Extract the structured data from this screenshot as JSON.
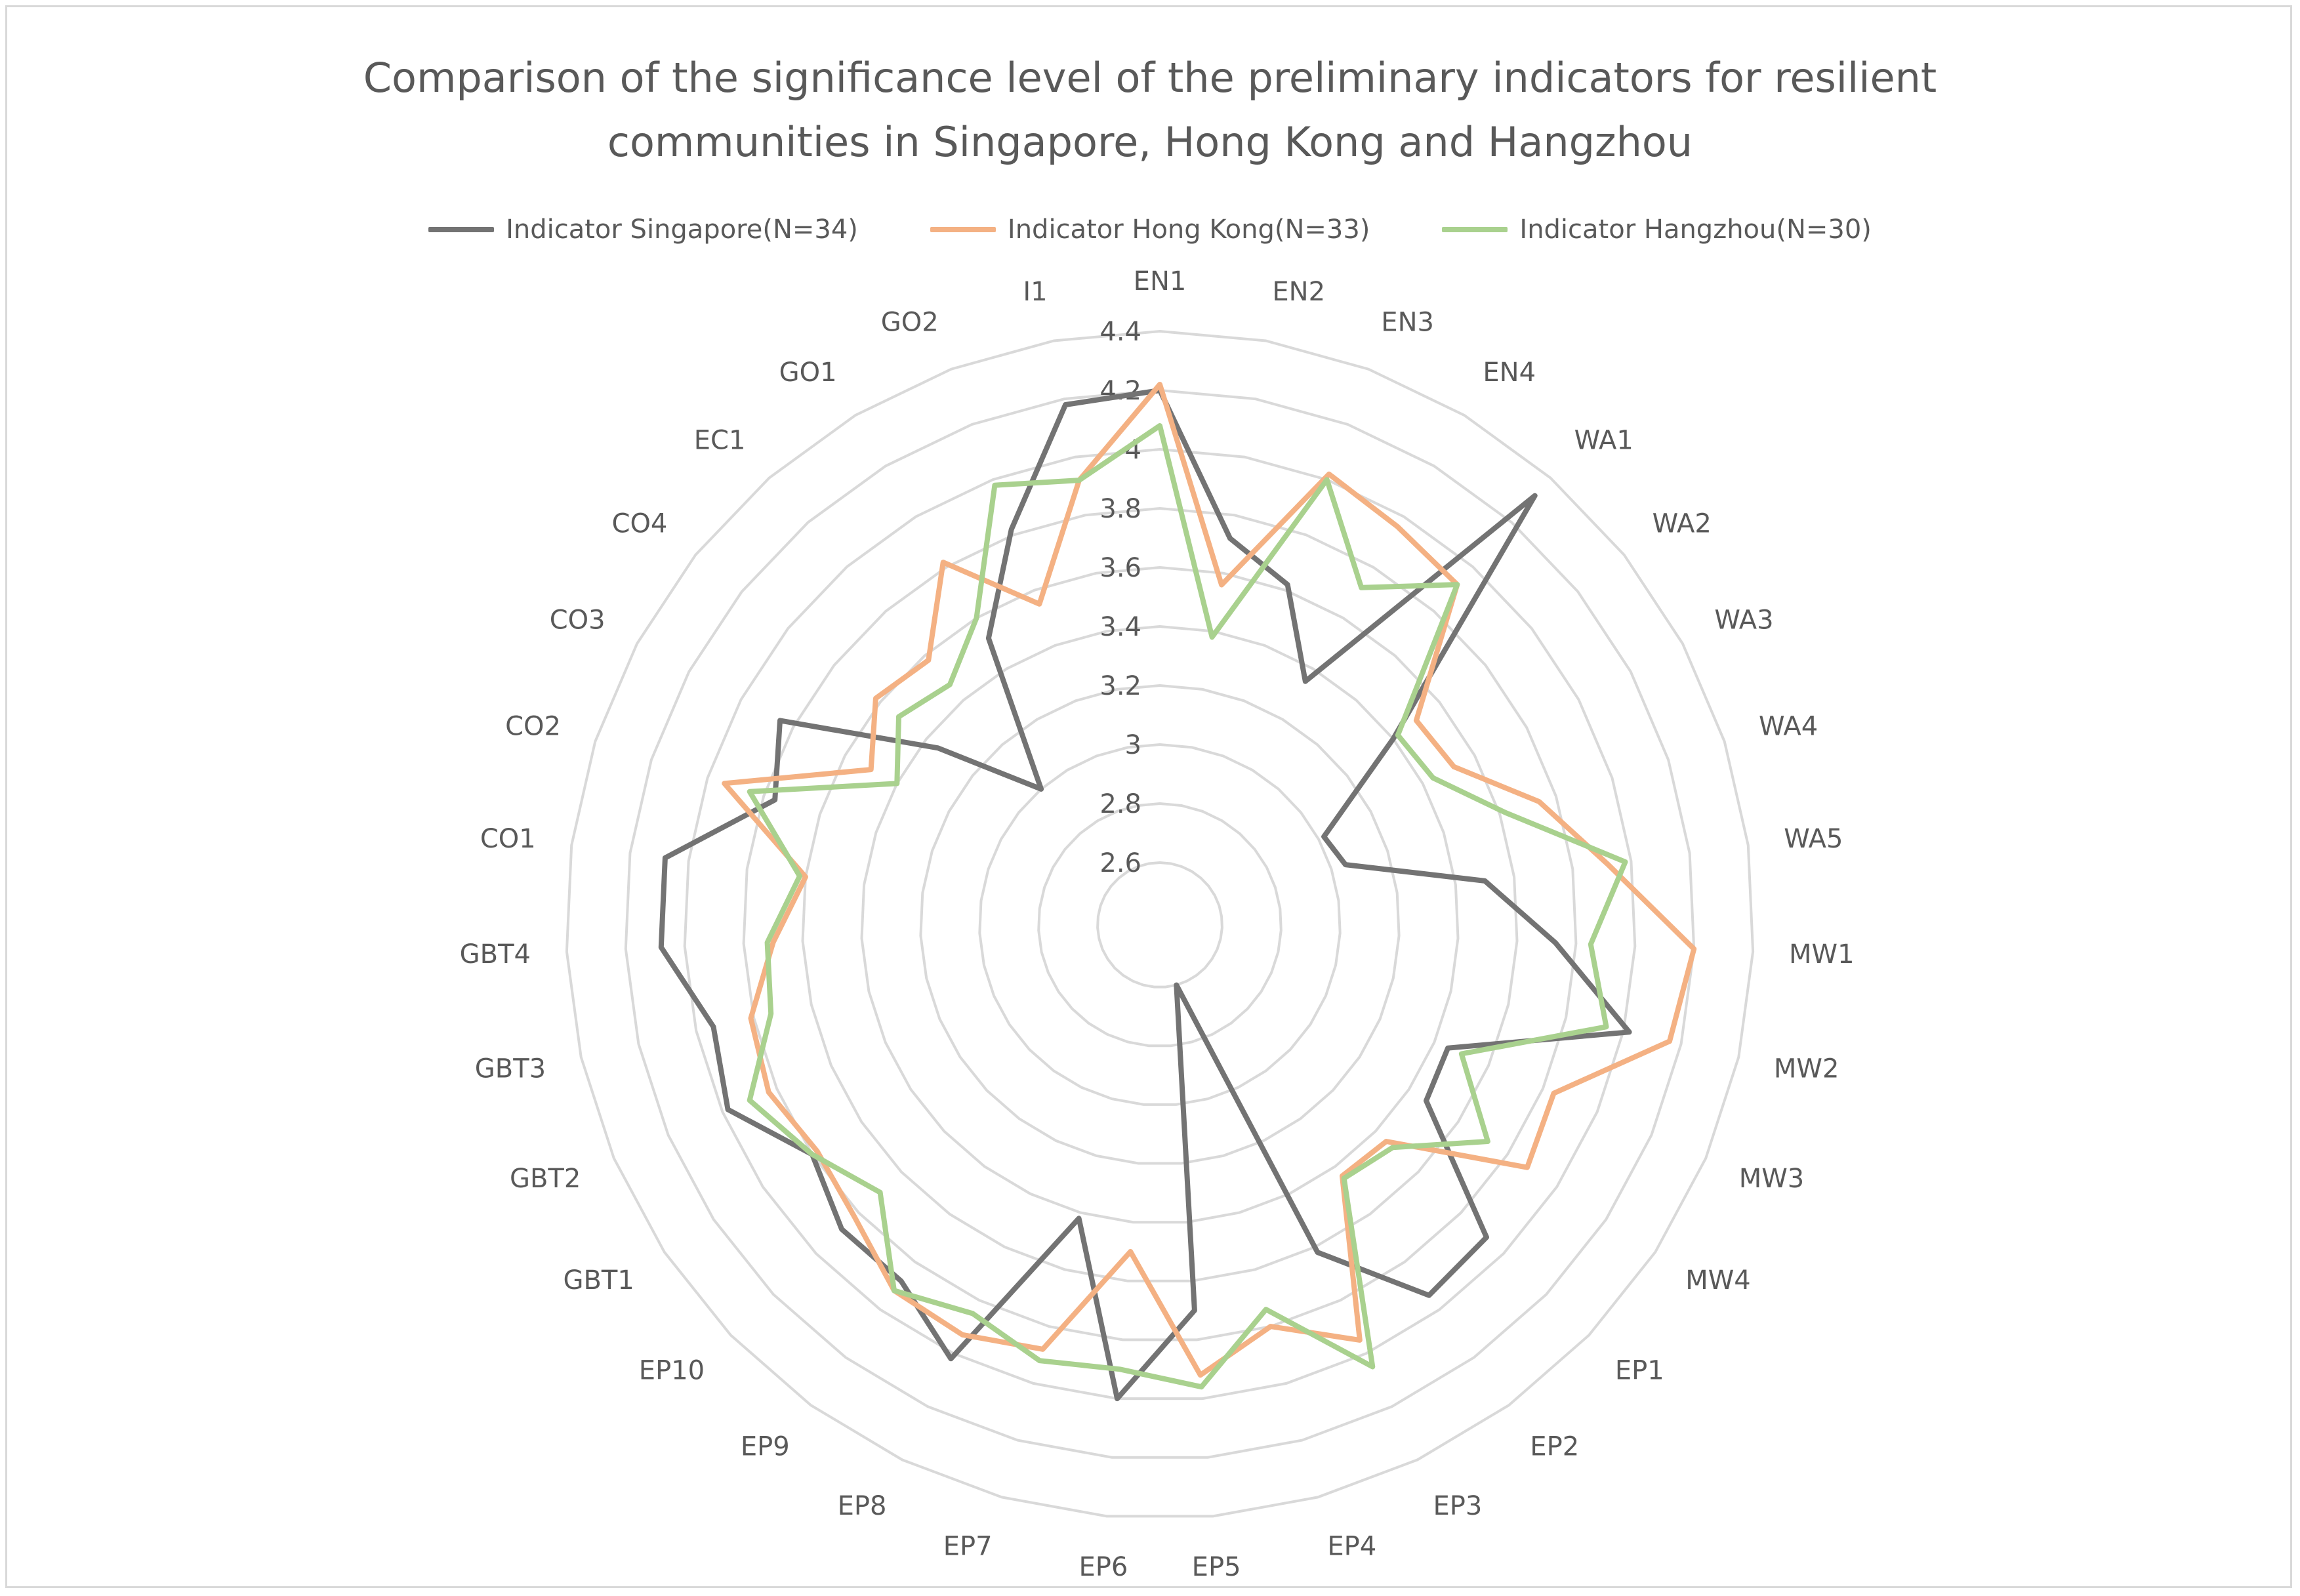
{
  "chart_data": {
    "type": "radar",
    "title_line1": "Comparison of the significance level of the preliminary indicators for resilient",
    "title_line2": "communities in Singapore, Hong Kong and Hangzhou",
    "categories": [
      "EN1",
      "EN2",
      "EN3",
      "EN4",
      "WA1",
      "WA2",
      "WA3",
      "WA4",
      "WA5",
      "MW1",
      "MW2",
      "MW3",
      "MW4",
      "EP1",
      "EP2",
      "EP3",
      "EP4",
      "EP5",
      "EP6",
      "EP7",
      "EP8",
      "EP9",
      "EP10",
      "GBT1",
      "GBT2",
      "GBT3",
      "GBT4",
      "CO1",
      "CO2",
      "CO3",
      "CO4",
      "EC1",
      "GO1",
      "GO2",
      "I1"
    ],
    "axis": {
      "min": 2.6,
      "max": 4.4,
      "step": 0.2,
      "tick_labels": [
        "2.6",
        "2.8",
        "3",
        "3.2",
        "3.4",
        "3.6",
        "3.8",
        "4",
        "4.2",
        "4.4"
      ]
    },
    "series": [
      {
        "name": "Indicator Singapore(N=34)",
        "color": "#737373",
        "values": [
          4.2,
          3.72,
          3.62,
          3.35,
          4.32,
          3.4,
          3.02,
          3.05,
          3.5,
          3.73,
          4.02,
          3.45,
          3.47,
          3.92,
          3.94,
          3.62,
          2.6,
          3.7,
          4.0,
          3.42,
          4.02,
          3.88,
          3.88,
          3.8,
          3.98,
          3.94,
          4.08,
          4.08,
          3.76,
          3.85,
          3.35,
          3.0,
          3.52,
          3.82,
          4.18
        ]
      },
      {
        "name": "Indicator Hong Kong(N=33)",
        "color": "#f4b183",
        "values": [
          4.22,
          3.56,
          4.02,
          3.96,
          3.92,
          3.5,
          3.52,
          3.74,
          3.92,
          4.2,
          4.16,
          3.84,
          3.88,
          3.45,
          3.44,
          3.95,
          3.8,
          3.92,
          3.5,
          3.88,
          3.93,
          3.92,
          3.82,
          3.78,
          3.83,
          3.81,
          3.7,
          3.6,
          3.94,
          3.5,
          3.62,
          3.58,
          3.82,
          3.55,
          3.92
        ]
      },
      {
        "name": "Indicator Hangzhou(N=30)",
        "color": "#a9d18e",
        "values": [
          4.08,
          3.38,
          4.0,
          3.72,
          3.92,
          3.42,
          3.44,
          3.62,
          3.98,
          3.85,
          3.94,
          3.5,
          3.72,
          3.48,
          3.45,
          4.05,
          3.74,
          3.96,
          3.9,
          3.92,
          3.85,
          3.92,
          3.7,
          3.8,
          3.9,
          3.74,
          3.72,
          3.62,
          3.85,
          3.4,
          3.52,
          3.47,
          3.6,
          3.98,
          3.92
        ]
      }
    ]
  }
}
